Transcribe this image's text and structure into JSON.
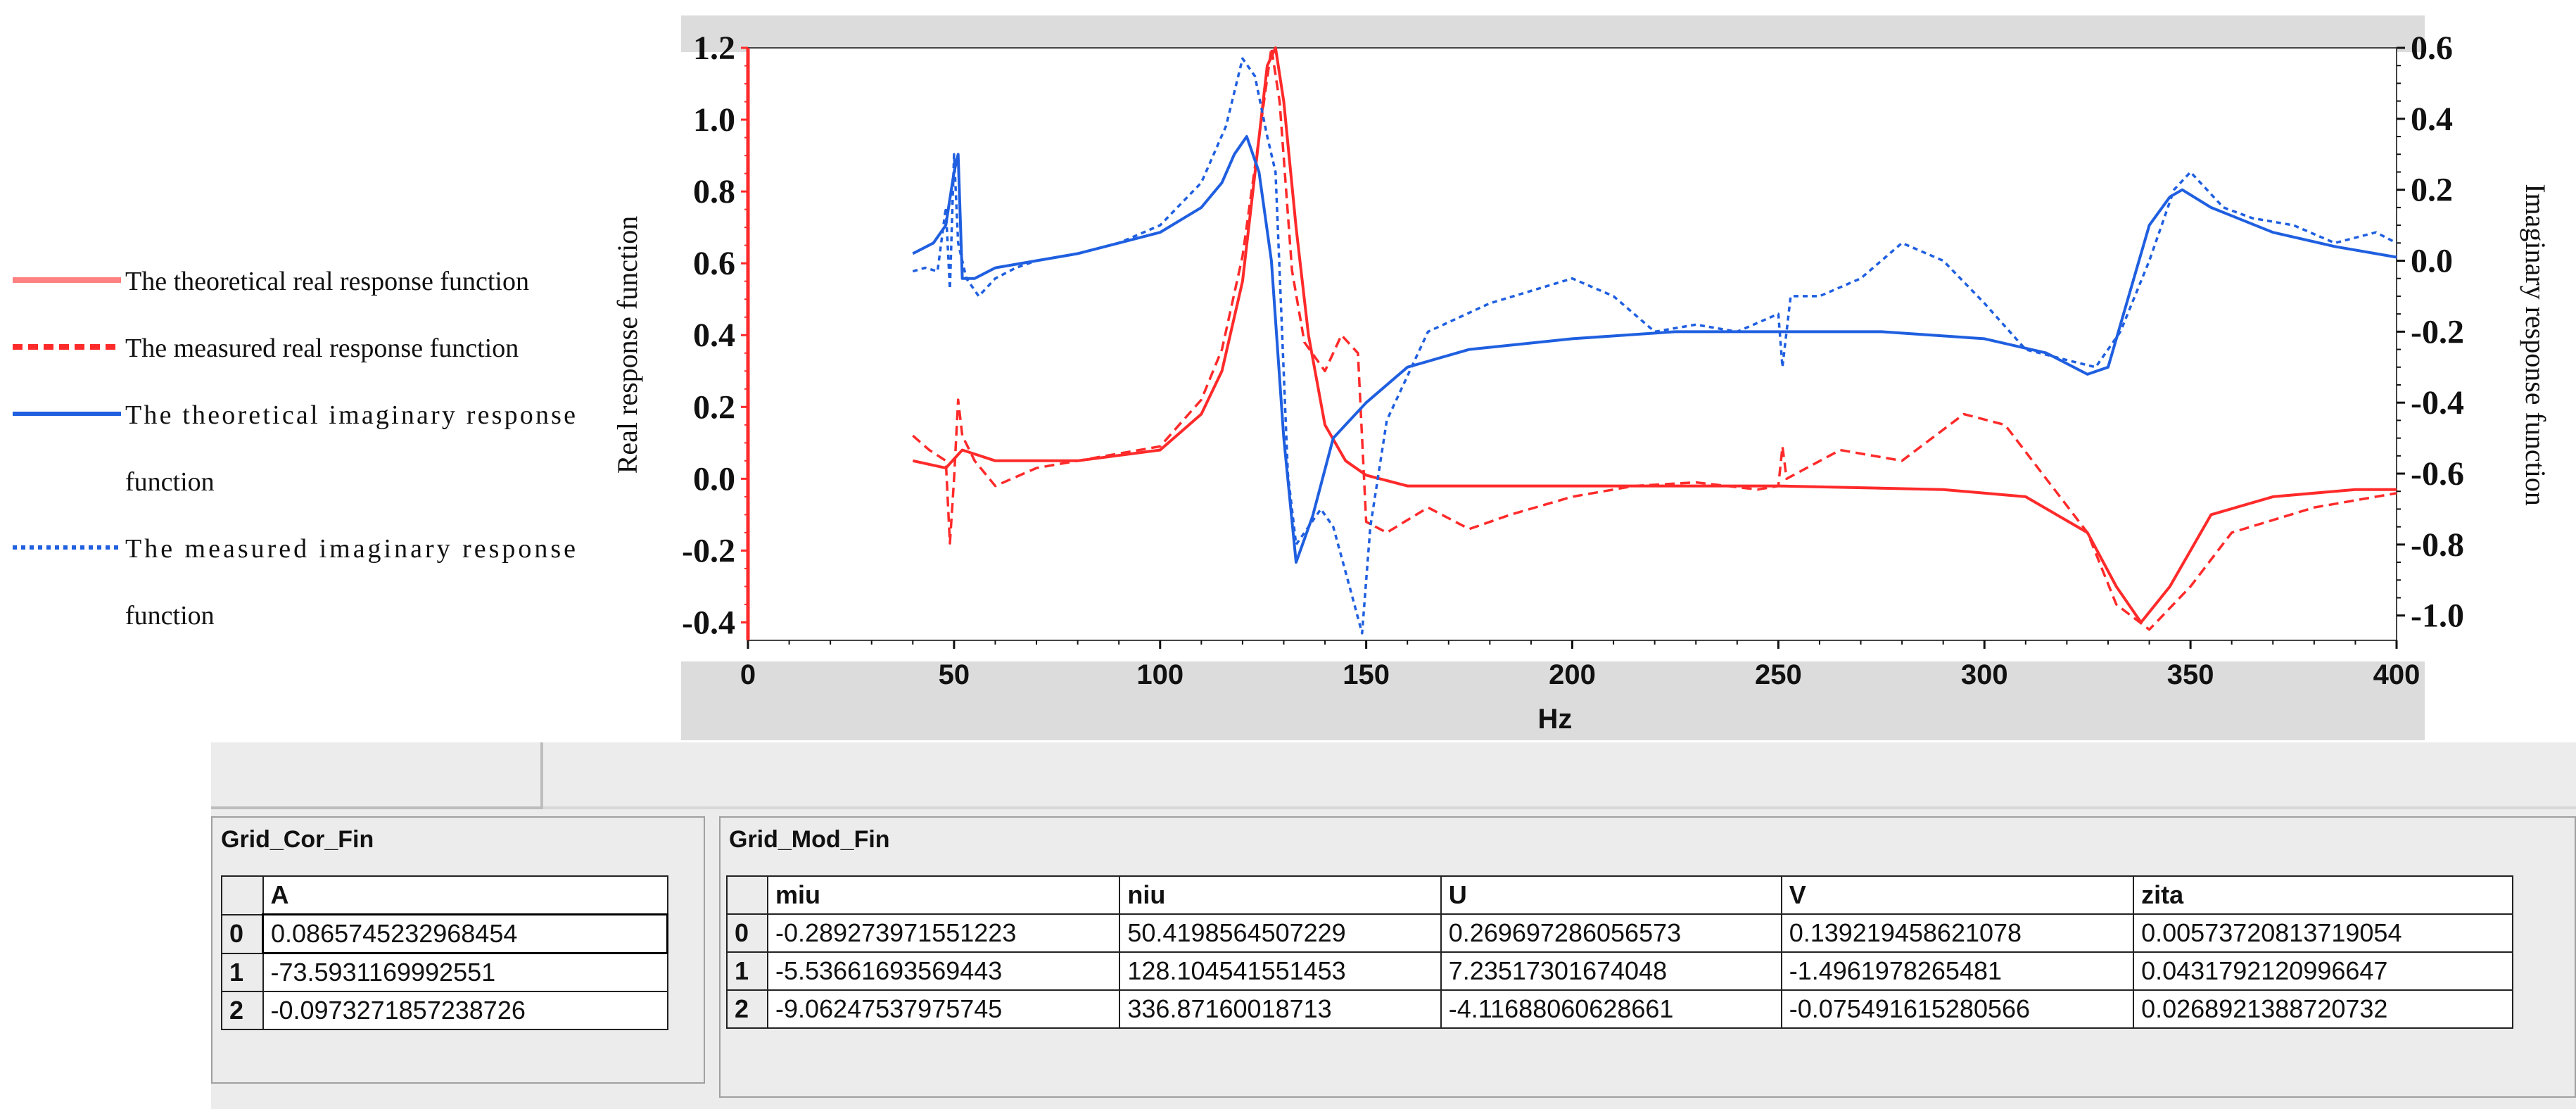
{
  "chart_data": {
    "type": "line",
    "x_axis": {
      "label": "Hz",
      "range": [
        0,
        400
      ],
      "ticks": [
        "0",
        "50",
        "100",
        "150",
        "200",
        "250",
        "300",
        "350",
        "400"
      ]
    },
    "y_left": {
      "label": "Real response function",
      "range": [
        -0.45,
        1.2
      ],
      "ticks": [
        "1.2",
        "1.0",
        "0.8",
        "0.6",
        "0.4",
        "0.2",
        "0.0",
        "-0.2",
        "-0.4"
      ]
    },
    "y_right": {
      "label": "Imaginary response function",
      "range": [
        -1.07,
        0.6
      ],
      "ticks": [
        "0.6",
        "0.4",
        "0.2",
        "0.0",
        "-0.2",
        "-0.4",
        "-0.6",
        "-0.8",
        "-1.0"
      ]
    },
    "series": [
      {
        "name": "The theoretical real response function",
        "axis": "left",
        "color": "#ff2a2a",
        "dash": "solid",
        "x": [
          40,
          48,
          52,
          60,
          80,
          100,
          110,
          115,
          120,
          123,
          126,
          128,
          130,
          133,
          136,
          140,
          145,
          150,
          160,
          175,
          200,
          250,
          290,
          310,
          325,
          332,
          338,
          345,
          355,
          370,
          390,
          400
        ],
        "y": [
          0.05,
          0.03,
          0.08,
          0.05,
          0.05,
          0.08,
          0.18,
          0.3,
          0.55,
          0.85,
          1.15,
          1.2,
          1.05,
          0.7,
          0.4,
          0.15,
          0.05,
          0.01,
          -0.02,
          -0.02,
          -0.02,
          -0.02,
          -0.03,
          -0.05,
          -0.15,
          -0.3,
          -0.4,
          -0.3,
          -0.1,
          -0.05,
          -0.03,
          -0.03
        ]
      },
      {
        "name": "The measured real response function",
        "axis": "left",
        "color": "#ff2a2a",
        "dash": "dashed",
        "x": [
          40,
          44,
          48,
          49,
          50,
          51,
          52,
          55,
          60,
          70,
          80,
          90,
          100,
          110,
          115,
          120,
          124,
          127,
          129,
          132,
          135,
          140,
          144,
          148,
          150,
          155,
          165,
          175,
          185,
          200,
          215,
          230,
          245,
          250,
          251,
          252,
          265,
          280,
          295,
          305,
          315,
          325,
          332,
          340,
          350,
          360,
          380,
          400
        ],
        "y": [
          0.12,
          0.08,
          0.05,
          -0.18,
          0.0,
          0.22,
          0.12,
          0.05,
          -0.02,
          0.03,
          0.05,
          0.07,
          0.09,
          0.22,
          0.36,
          0.62,
          0.95,
          1.2,
          1.05,
          0.58,
          0.38,
          0.3,
          0.4,
          0.35,
          -0.12,
          -0.15,
          -0.08,
          -0.14,
          -0.1,
          -0.05,
          -0.02,
          -0.01,
          -0.03,
          -0.02,
          0.09,
          0.0,
          0.08,
          0.05,
          0.18,
          0.15,
          0.0,
          -0.15,
          -0.35,
          -0.42,
          -0.3,
          -0.15,
          -0.08,
          -0.04
        ]
      },
      {
        "name": "The theoretical imaginary response function",
        "axis": "right",
        "color": "#1f5fe0",
        "dash": "solid",
        "x": [
          40,
          45,
          48,
          50,
          51,
          52,
          55,
          60,
          80,
          100,
          110,
          115,
          118,
          121,
          124,
          127,
          130,
          133,
          137,
          142,
          150,
          160,
          175,
          200,
          225,
          250,
          275,
          300,
          315,
          325,
          330,
          335,
          340,
          345,
          348,
          355,
          370,
          385,
          400
        ],
        "y": [
          0.02,
          0.05,
          0.1,
          0.25,
          0.3,
          -0.05,
          -0.05,
          -0.02,
          0.02,
          0.08,
          0.15,
          0.22,
          0.3,
          0.35,
          0.25,
          0.0,
          -0.5,
          -0.85,
          -0.72,
          -0.5,
          -0.4,
          -0.3,
          -0.25,
          -0.22,
          -0.2,
          -0.2,
          -0.2,
          -0.22,
          -0.26,
          -0.32,
          -0.3,
          -0.1,
          0.1,
          0.18,
          0.2,
          0.15,
          0.08,
          0.04,
          0.01
        ]
      },
      {
        "name": "The measured imaginary response function",
        "axis": "right",
        "color": "#1f5fe0",
        "dash": "dotted",
        "x": [
          40,
          43,
          46,
          48,
          49,
          50,
          51,
          53,
          56,
          60,
          65,
          70,
          80,
          90,
          100,
          110,
          116,
          120,
          123,
          126,
          128,
          131,
          133,
          136,
          139,
          142,
          146,
          149,
          151,
          155,
          165,
          180,
          200,
          210,
          220,
          230,
          240,
          250,
          251,
          253,
          260,
          270,
          280,
          290,
          300,
          310,
          320,
          327,
          333,
          340,
          346,
          350,
          358,
          365,
          375,
          385,
          395,
          400
        ],
        "y": [
          -0.03,
          -0.02,
          -0.03,
          0.15,
          -0.08,
          0.3,
          0.05,
          -0.05,
          -0.1,
          -0.05,
          -0.02,
          0.0,
          0.02,
          0.05,
          0.1,
          0.22,
          0.38,
          0.57,
          0.52,
          0.35,
          0.25,
          -0.6,
          -0.8,
          -0.75,
          -0.7,
          -0.75,
          -0.92,
          -1.05,
          -0.75,
          -0.45,
          -0.2,
          -0.12,
          -0.05,
          -0.1,
          -0.2,
          -0.18,
          -0.2,
          -0.15,
          -0.3,
          -0.1,
          -0.1,
          -0.05,
          0.05,
          0.0,
          -0.12,
          -0.25,
          -0.28,
          -0.3,
          -0.2,
          0.0,
          0.2,
          0.25,
          0.15,
          0.12,
          0.1,
          0.05,
          0.08,
          0.05
        ]
      }
    ]
  },
  "grid_cor": {
    "title": "Grid_Cor_Fin",
    "column": "A",
    "rows": [
      {
        "idx": "0",
        "a": "0.0865745232968454"
      },
      {
        "idx": "1",
        "a": "-73.5931169992551"
      },
      {
        "idx": "2",
        "a": "-0.0973271857238726"
      }
    ]
  },
  "grid_mod": {
    "title": "Grid_Mod_Fin",
    "columns": [
      "miu",
      "niu",
      "U",
      "V",
      "zita"
    ],
    "rows": [
      {
        "idx": "0",
        "cells": [
          "-0.289273971551223",
          "50.4198564507229",
          "0.269697286056573",
          "0.139219458621078",
          "0.00573720813719054"
        ]
      },
      {
        "idx": "1",
        "cells": [
          "-5.53661693569443",
          "128.104541551453",
          "7.23517301674048",
          "-1.4961978265481",
          "0.0431792120996647"
        ]
      },
      {
        "idx": "2",
        "cells": [
          "-9.06247537975745",
          "336.87160018713",
          "-4.11688060628661",
          "-0.075491615280566",
          "0.0268921388720732"
        ]
      }
    ]
  },
  "colors": {
    "real": "#ff2a2a",
    "imag": "#1f5fe0",
    "legend_real_theory": "#ff8080"
  }
}
